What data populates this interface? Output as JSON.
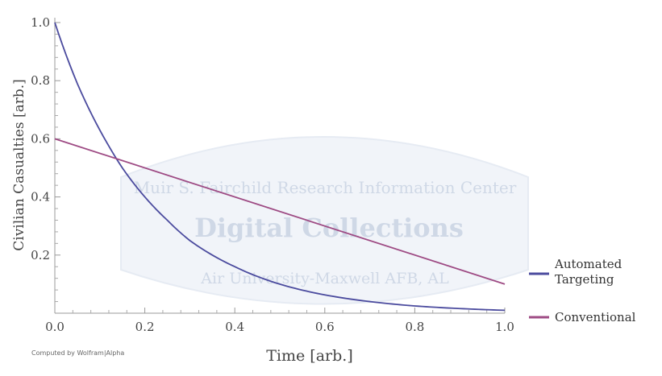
{
  "chart_data": {
    "type": "line",
    "xlabel": "Time [arb.]",
    "ylabel": "Civilian Casualties [arb.]",
    "xlim": [
      0,
      1
    ],
    "ylim": [
      0,
      1
    ],
    "x_ticks": [
      0.0,
      0.2,
      0.4,
      0.6,
      0.8,
      1.0
    ],
    "y_ticks": [
      0.2,
      0.4,
      0.6,
      0.8,
      1.0
    ],
    "x_tick_labels": [
      "0.0",
      "0.2",
      "0.4",
      "0.6",
      "0.8",
      "1.0"
    ],
    "y_tick_labels": [
      "0.2",
      "0.4",
      "0.6",
      "0.8",
      "1.0"
    ],
    "grid": false,
    "legend_position": "right",
    "series": [
      {
        "name": "Automated Targeting",
        "color": "#4b4b9e",
        "x": [
          0,
          0.05,
          0.1,
          0.12,
          0.15,
          0.2,
          0.25,
          0.3,
          0.35,
          0.4,
          0.5,
          0.6,
          0.7,
          0.8,
          0.9,
          1.0
        ],
        "y": [
          1.0,
          0.79,
          0.63,
          0.575,
          0.5,
          0.4,
          0.32,
          0.25,
          0.2,
          0.16,
          0.1,
          0.063,
          0.04,
          0.025,
          0.016,
          0.01
        ]
      },
      {
        "name": "Conventional",
        "color": "#9e4b84",
        "x": [
          0,
          1.0
        ],
        "y": [
          0.6,
          0.1
        ]
      }
    ],
    "legend": [
      "Automated Targeting",
      "Conventional"
    ],
    "legend_lines": [
      [
        "Automated",
        "Targeting"
      ],
      [
        "Conventional"
      ]
    ],
    "credit": "Computed by Wolfram|Alpha",
    "watermark": {
      "line1": "Muir S. Fairchild Research Information Center",
      "line2": "Digital Collections",
      "line3": "Air University-Maxwell AFB, AL"
    }
  }
}
